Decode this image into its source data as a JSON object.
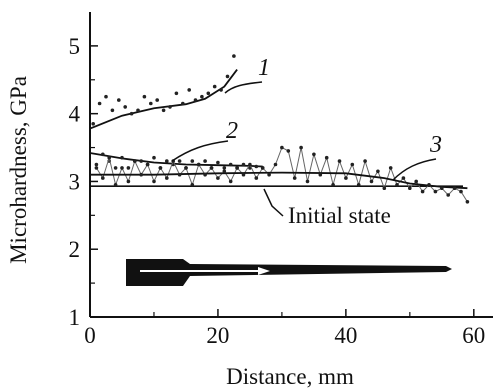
{
  "chart_data": {
    "type": "scatter",
    "xlabel": "Distance, mm",
    "ylabel": "Microhardness, GPa",
    "xlim": [
      0,
      63
    ],
    "ylim": [
      1,
      5.5
    ],
    "x_ticks": [
      0,
      20,
      40,
      60
    ],
    "y_ticks": [
      1,
      2,
      3,
      4,
      5
    ],
    "grid": false,
    "reference_line": {
      "label": "Initial state",
      "y": 2.93
    },
    "series": [
      {
        "name": "1",
        "points": [
          [
            0.5,
            3.85
          ],
          [
            1.5,
            4.15
          ],
          [
            2.5,
            4.25
          ],
          [
            3.5,
            4.05
          ],
          [
            4.5,
            4.2
          ],
          [
            5.5,
            4.1
          ],
          [
            6.5,
            4.0
          ],
          [
            7.5,
            4.05
          ],
          [
            8.5,
            4.25
          ],
          [
            9.5,
            4.15
          ],
          [
            10.5,
            4.2
          ],
          [
            11.5,
            4.05
          ],
          [
            12.5,
            4.1
          ],
          [
            13.5,
            4.3
          ],
          [
            14.5,
            4.15
          ],
          [
            15.5,
            4.35
          ],
          [
            16.5,
            4.2
          ],
          [
            17.5,
            4.25
          ],
          [
            18.5,
            4.3
          ],
          [
            19.5,
            4.4
          ],
          [
            20.5,
            4.35
          ],
          [
            21.5,
            4.55
          ],
          [
            22.5,
            4.85
          ]
        ],
        "trend": [
          [
            0,
            3.78
          ],
          [
            5,
            3.97
          ],
          [
            10,
            4.08
          ],
          [
            15,
            4.14
          ],
          [
            18,
            4.22
          ],
          [
            21,
            4.4
          ],
          [
            23,
            4.65
          ]
        ]
      },
      {
        "name": "2",
        "points": [
          [
            1,
            3.25
          ],
          [
            2,
            3.4
          ],
          [
            3,
            3.3
          ],
          [
            4,
            3.2
          ],
          [
            5,
            3.35
          ],
          [
            6,
            3.2
          ],
          [
            7,
            3.3
          ],
          [
            8,
            3.3
          ],
          [
            9,
            3.25
          ],
          [
            10,
            3.35
          ],
          [
            11,
            3.2
          ],
          [
            12,
            3.3
          ],
          [
            13,
            3.25
          ],
          [
            14,
            3.3
          ],
          [
            15,
            3.2
          ],
          [
            16,
            3.3
          ],
          [
            17,
            3.25
          ],
          [
            18,
            3.3
          ],
          [
            19,
            3.2
          ],
          [
            20,
            3.28
          ],
          [
            21,
            3.2
          ],
          [
            22,
            3.25
          ],
          [
            23,
            3.2
          ],
          [
            24,
            3.25
          ],
          [
            25,
            3.2
          ],
          [
            26,
            3.22
          ],
          [
            27,
            3.2
          ]
        ],
        "trend": [
          [
            0,
            3.42
          ],
          [
            5,
            3.34
          ],
          [
            10,
            3.28
          ],
          [
            15,
            3.25
          ],
          [
            20,
            3.24
          ],
          [
            25,
            3.23
          ],
          [
            27,
            3.22
          ]
        ]
      },
      {
        "name": "3",
        "points": [
          [
            1,
            3.2
          ],
          [
            2,
            3.05
          ],
          [
            3,
            3.35
          ],
          [
            4,
            2.95
          ],
          [
            5,
            3.2
          ],
          [
            6,
            3.0
          ],
          [
            7,
            3.3
          ],
          [
            8,
            3.1
          ],
          [
            9,
            3.25
          ],
          [
            10,
            3.0
          ],
          [
            11,
            3.2
          ],
          [
            12,
            3.05
          ],
          [
            13,
            3.3
          ],
          [
            14,
            3.1
          ],
          [
            15,
            3.2
          ],
          [
            16,
            2.95
          ],
          [
            17,
            3.25
          ],
          [
            18,
            3.1
          ],
          [
            19,
            3.2
          ],
          [
            20,
            3.05
          ],
          [
            21,
            3.15
          ],
          [
            22,
            3.0
          ],
          [
            23,
            3.2
          ],
          [
            24,
            3.1
          ],
          [
            25,
            3.25
          ],
          [
            26,
            3.05
          ],
          [
            27,
            3.2
          ],
          [
            28,
            3.1
          ],
          [
            29,
            3.25
          ],
          [
            30,
            3.5
          ],
          [
            31,
            3.45
          ],
          [
            32,
            3.05
          ],
          [
            33,
            3.5
          ],
          [
            34,
            3.0
          ],
          [
            35,
            3.4
          ],
          [
            36,
            3.1
          ],
          [
            37,
            3.35
          ],
          [
            38,
            2.95
          ],
          [
            39,
            3.3
          ],
          [
            40,
            3.05
          ],
          [
            41,
            3.25
          ],
          [
            42,
            2.95
          ],
          [
            43,
            3.3
          ],
          [
            44,
            3.0
          ],
          [
            45,
            3.15
          ],
          [
            46,
            2.9
          ],
          [
            47,
            3.2
          ],
          [
            48,
            2.95
          ],
          [
            49,
            3.05
          ],
          [
            50,
            2.9
          ],
          [
            51,
            3.0
          ],
          [
            52,
            2.85
          ],
          [
            53,
            2.95
          ],
          [
            54,
            2.85
          ],
          [
            55,
            2.9
          ],
          [
            56,
            2.8
          ],
          [
            57,
            2.9
          ],
          [
            58,
            2.85
          ],
          [
            59,
            2.7
          ]
        ],
        "trend": [
          [
            0,
            3.1
          ],
          [
            10,
            3.1
          ],
          [
            20,
            3.12
          ],
          [
            30,
            3.13
          ],
          [
            40,
            3.12
          ],
          [
            46,
            3.05
          ],
          [
            50,
            2.97
          ],
          [
            55,
            2.92
          ],
          [
            59,
            2.9
          ]
        ]
      }
    ]
  }
}
